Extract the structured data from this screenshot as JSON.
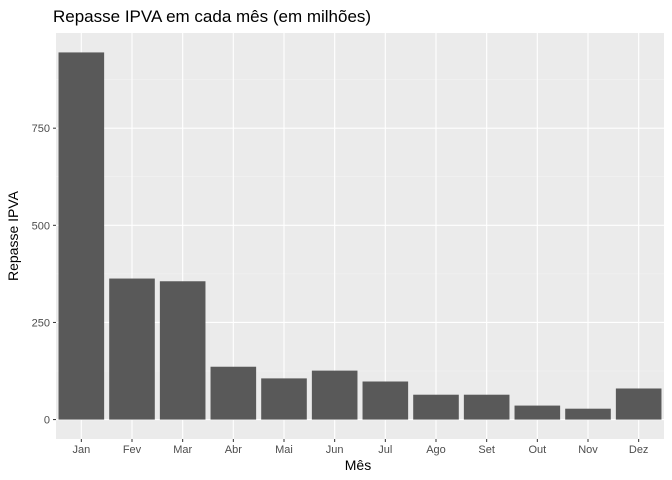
{
  "chart_data": {
    "type": "bar",
    "title": "Repasse IPVA em cada mês (em milhões)",
    "xlabel": "Mês",
    "ylabel": "Repasse IPVA",
    "categories": [
      "Jan",
      "Fev",
      "Mar",
      "Abr",
      "Mai",
      "Jun",
      "Jul",
      "Ago",
      "Set",
      "Out",
      "Nov",
      "Dez"
    ],
    "values": [
      945,
      363,
      356,
      136,
      106,
      126,
      98,
      64,
      64,
      36,
      28,
      80
    ],
    "ylim": [
      -50,
      995
    ],
    "yticks": [
      0,
      250,
      500,
      750
    ],
    "ytick_labels": [
      "0",
      "250",
      "500",
      "750"
    ],
    "grid": true,
    "legend": "none",
    "colors": {
      "bar": "#595959",
      "panel": "#ebebeb",
      "grid_major": "#ffffff",
      "grid_minor": "#f4f4f4",
      "tick_text": "#4d4d4d"
    }
  }
}
